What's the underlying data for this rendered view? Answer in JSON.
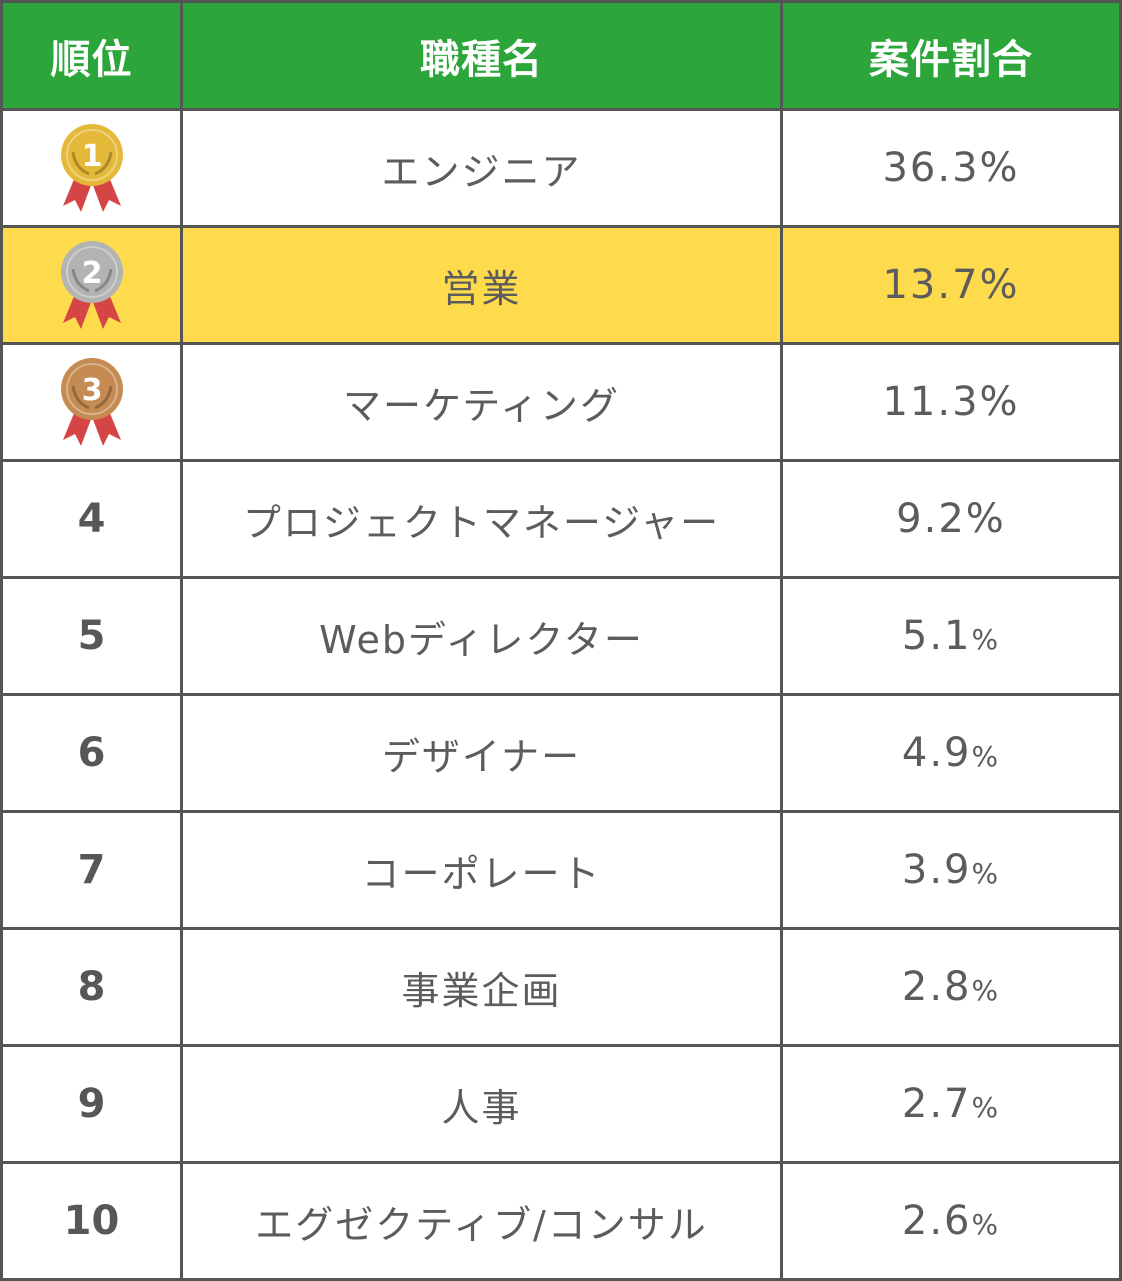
{
  "header": {
    "rank": "順位",
    "job": "職種名",
    "share": "案件割合"
  },
  "rows": [
    {
      "rank": "1",
      "job": "エンジニア",
      "value": "36.3",
      "unit": "%",
      "medal": "gold-medal-icon",
      "medal_color": "#e4b93a"
    },
    {
      "rank": "2",
      "job": "営業",
      "value": "13.7",
      "unit": "%",
      "medal": "silver-medal-icon",
      "medal_color": "#b3b3b3",
      "highlight": "#fedb4d"
    },
    {
      "rank": "3",
      "job": "マーケティング",
      "value": "11.3",
      "unit": "%",
      "medal": "bronze-medal-icon",
      "medal_color": "#c58b52"
    },
    {
      "rank": "4",
      "job": "プロジェクトマネージャー",
      "value": "9.2",
      "unit": "%"
    },
    {
      "rank": "5",
      "job": "Webディレクター",
      "value": "5.1",
      "unit": "%"
    },
    {
      "rank": "6",
      "job": "デザイナー",
      "value": "4.9",
      "unit": "%"
    },
    {
      "rank": "7",
      "job": "コーポレート",
      "value": "3.9",
      "unit": "%"
    },
    {
      "rank": "8",
      "job": "事業企画",
      "value": "2.8",
      "unit": "%"
    },
    {
      "rank": "9",
      "job": "人事",
      "value": "2.7",
      "unit": "%"
    },
    {
      "rank": "10",
      "job": "エグゼクティブ/コンサル",
      "value": "2.6",
      "unit": "%"
    }
  ],
  "colors": {
    "header_bg": "#2ca63a",
    "border": "#555555",
    "highlight": "#fedb4d",
    "ribbon": "#d64545"
  }
}
